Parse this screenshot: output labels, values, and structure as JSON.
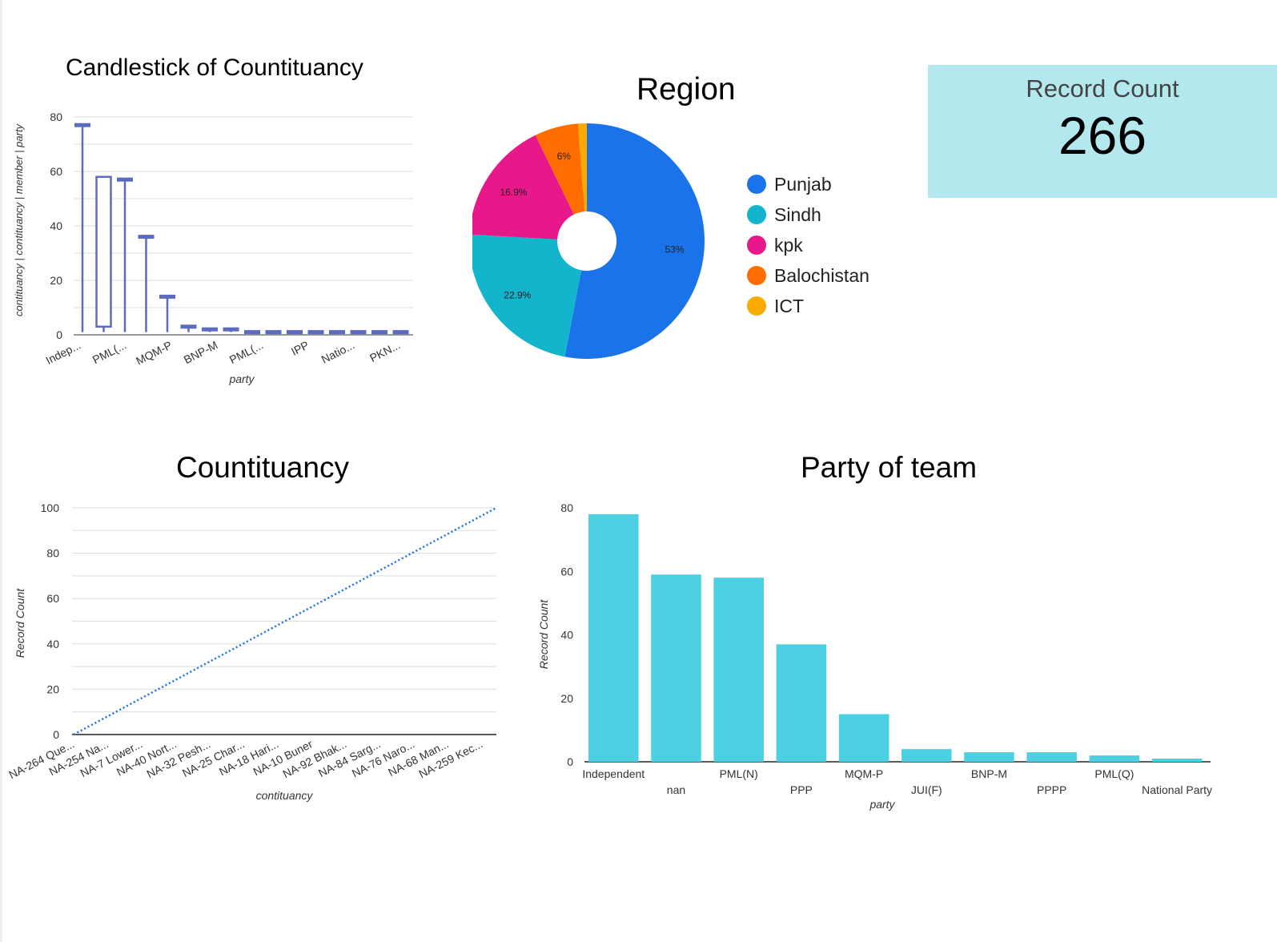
{
  "candlestick": {
    "title": "Candlestick of Countituancy",
    "ylabel": "contituancy | contituancy | member | party",
    "xlabel": "party",
    "ytick_labels": [
      "0",
      "20",
      "40",
      "60",
      "80"
    ],
    "xtick_labels": [
      "Indep...",
      "PML(...",
      "MQM-P",
      "BNP-M",
      "PML(...",
      "IPP",
      "Natio...",
      "PKN..."
    ],
    "color": "#5c6bc0"
  },
  "region": {
    "title": "Region",
    "colors": [
      "#1a73e8",
      "#12b5cb",
      "#e8178a",
      "#ff6d01",
      "#f9ab00"
    ]
  },
  "scorecard": {
    "label": "Record Count",
    "value": "266"
  },
  "countituancy": {
    "title": "Countituancy",
    "ylabel": "Record Count",
    "xlabel": "contituancy",
    "ytick_labels": [
      "0",
      "20",
      "40",
      "60",
      "80",
      "100"
    ],
    "xtick_labels": [
      "NA-264 Que...",
      "NA-254 Na...",
      "NA-7 Lower...",
      "NA-40 Nort...",
      "NA-32 Pesh...",
      "NA-25 Char...",
      "NA-18 Hari...",
      "NA-10 Buner",
      "NA-92 Bhak...",
      "NA-84 Sarg...",
      "NA-76 Naro...",
      "NA-68 Man...",
      "NA-259 Kec..."
    ],
    "color": "#1a73e8"
  },
  "party_team": {
    "title": "Party of team",
    "ylabel": "Record Count",
    "xlabel": "party",
    "ytick_labels": [
      "0",
      "20",
      "40",
      "60",
      "80"
    ],
    "color": "#4dd0e1"
  },
  "chart_data": [
    {
      "type": "candlestick",
      "title": "Candlestick of Countituancy",
      "xlabel": "party",
      "ylabel": "contituancy | contituancy | member | party",
      "ylim": [
        0,
        80
      ],
      "categories": [
        "Indep...",
        "",
        "PML(...",
        "",
        "MQM-P",
        "",
        "BNP-M",
        "",
        "PML(...",
        "",
        "IPP",
        "",
        "Natio...",
        "",
        "PKN...",
        ""
      ],
      "candles": [
        {
          "low": 1,
          "open": 77,
          "close": 77,
          "high": 77
        },
        {
          "low": 1,
          "open": 58,
          "close": 3,
          "high": 58
        },
        {
          "low": 1,
          "open": 57,
          "close": 57,
          "high": 57
        },
        {
          "low": 1,
          "open": 36,
          "close": 36,
          "high": 36
        },
        {
          "low": 1,
          "open": 14,
          "close": 14,
          "high": 14
        },
        {
          "low": 1,
          "open": 3,
          "close": 3,
          "high": 3
        },
        {
          "low": 1,
          "open": 2,
          "close": 2,
          "high": 2
        },
        {
          "low": 1,
          "open": 2,
          "close": 2,
          "high": 2
        },
        {
          "low": 1,
          "open": 1,
          "close": 1,
          "high": 1
        },
        {
          "low": 1,
          "open": 1,
          "close": 1,
          "high": 1
        },
        {
          "low": 1,
          "open": 1,
          "close": 1,
          "high": 1
        },
        {
          "low": 1,
          "open": 1,
          "close": 1,
          "high": 1
        },
        {
          "low": 1,
          "open": 1,
          "close": 1,
          "high": 1
        },
        {
          "low": 1,
          "open": 1,
          "close": 1,
          "high": 1
        },
        {
          "low": 1,
          "open": 1,
          "close": 1,
          "high": 1
        },
        {
          "low": 1,
          "open": 1,
          "close": 1,
          "high": 1
        }
      ],
      "grid": true
    },
    {
      "type": "pie",
      "title": "Region",
      "donut": true,
      "categories": [
        "Punjab",
        "Sindh",
        "kpk",
        "Balochistan",
        "ICT"
      ],
      "values": [
        53,
        22.9,
        16.9,
        6,
        1.2
      ],
      "data_labels": [
        "53%",
        "22.9%",
        "16.9%",
        "6%",
        ""
      ],
      "legend": "right"
    },
    {
      "type": "line",
      "title": "Countituancy",
      "xlabel": "contituancy",
      "ylabel": "Record Count",
      "ylim": [
        0,
        100
      ],
      "series": [
        {
          "values": [
            0,
            100
          ]
        }
      ],
      "style": "dotted",
      "grid": true
    },
    {
      "type": "bar",
      "title": "Party of team",
      "xlabel": "party",
      "ylabel": "Record Count",
      "ylim": [
        0,
        80
      ],
      "categories": [
        "Independent",
        "nan",
        "PML(N)",
        "PPP",
        "MQM-P",
        "JUI(F)",
        "BNP-M",
        "PPPP",
        "PML(Q)",
        "National Party"
      ],
      "values": [
        78,
        59,
        58,
        37,
        15,
        4,
        3,
        3,
        2,
        1
      ],
      "grid": false
    }
  ]
}
